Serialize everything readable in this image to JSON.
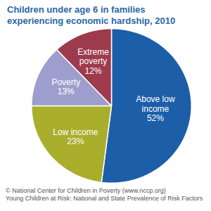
{
  "chart_data": {
    "type": "pie",
    "title": "Children under age 6 in families experiencing economic hardship, 2010",
    "categories": [
      "Above low income",
      "Low income",
      "Poverty",
      "Extreme poverty"
    ],
    "values": [
      52,
      23,
      13,
      12
    ],
    "value_labels": [
      "52%",
      "23%",
      "13%",
      "12%"
    ],
    "colors": [
      "#1d5ea9",
      "#a9ae2c",
      "#9d9ecd",
      "#9d3a4c"
    ],
    "data_labels": true,
    "caption": [
      "© National Center for Children in Poverty (www.nccp.org)",
      "Young Children at Risk: National and State Prevalence of Risk Factors"
    ]
  }
}
